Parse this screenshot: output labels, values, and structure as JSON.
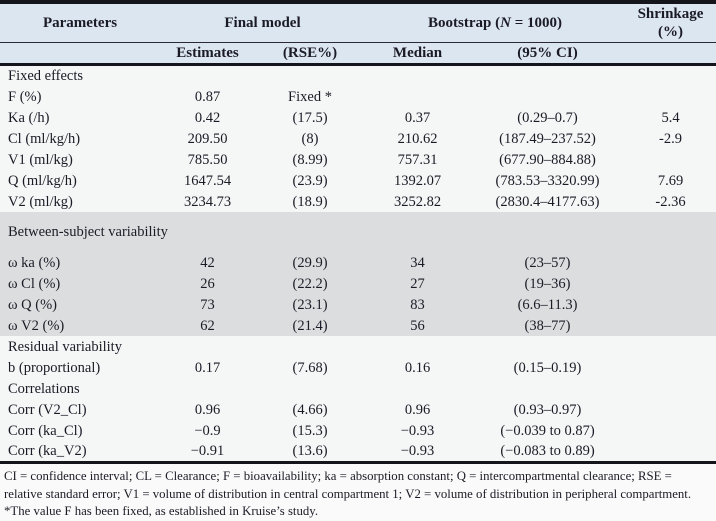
{
  "colors": {
    "header_bg": "#dce6f1",
    "section_gray_bg": "#dcddde",
    "body_bg": "#f5f6f6",
    "text": "#1b1b26",
    "border": "#15151c"
  },
  "table": {
    "header": {
      "parameters": "Parameters",
      "final_model": "Final model",
      "bootstrap_pre": "Bootstrap (",
      "bootstrap_n": "N",
      "bootstrap_post": " = 1000)",
      "shrinkage": "Shrinkage (%)",
      "estimates": "Estimates",
      "rse": "(RSE%)",
      "median": "Median",
      "ci": "(95% CI)"
    },
    "sections": [
      {
        "label": "Fixed effects",
        "gray": false,
        "rows": [
          [
            "F (%)",
            "0.87",
            "Fixed *",
            "",
            "",
            ""
          ],
          [
            "Ka (/h)",
            "0.42",
            "(17.5)",
            "0.37",
            "(0.29–0.7)",
            "5.4"
          ],
          [
            "Cl (ml/kg/h)",
            "209.50",
            "(8)",
            "210.62",
            "(187.49–237.52)",
            "-2.9"
          ],
          [
            "V1 (ml/kg)",
            "785.50",
            "(8.99)",
            "757.31",
            "(677.90–884.88)",
            ""
          ],
          [
            "Q (ml/kg/h)",
            "1647.54",
            "(23.9)",
            "1392.07",
            "(783.53–3320.99)",
            "7.69"
          ],
          [
            "V2 (ml/kg)",
            "3234.73",
            "(18.9)",
            "3252.82",
            "(2830.4–4177.63)",
            "-2.36"
          ]
        ]
      },
      {
        "label": "Between-subject variability",
        "gray": true,
        "rows": [
          [
            "ω ka (%)",
            "42",
            "(29.9)",
            "34",
            "(23–57)",
            ""
          ],
          [
            "ω Cl (%)",
            "26",
            "(22.2)",
            "27",
            "(19–36)",
            ""
          ],
          [
            "ω Q (%)",
            "73",
            "(23.1)",
            "83",
            "(6.6–11.3)",
            ""
          ],
          [
            "ω V2 (%)",
            "62",
            "(21.4)",
            "56",
            "(38–77)",
            ""
          ]
        ]
      },
      {
        "label": "Residual variability",
        "gray": false,
        "rows": [
          [
            "b (proportional)",
            "0.17",
            "(7.68)",
            "0.16",
            "(0.15–0.19)",
            ""
          ]
        ]
      },
      {
        "label": "Correlations",
        "gray": false,
        "rows": [
          [
            "Corr (V2_Cl)",
            "0.96",
            "(4.66)",
            "0.96",
            "(0.93–0.97)",
            ""
          ],
          [
            "Corr (ka_Cl)",
            "−0.9",
            "(15.3)",
            "−0.93",
            "(−0.039 to 0.87)",
            ""
          ],
          [
            "Corr (ka_V2)",
            "−0.91",
            "(13.6)",
            "−0.93",
            "(−0.083 to 0.89)",
            ""
          ]
        ]
      }
    ]
  },
  "footnotes": {
    "abbreviations": "CI = confidence interval; CL = Clearance; F = bioavailability; ka = absorption constant; Q = intercompartmental clearance; RSE = relative standard error; V1 = volume of distribution in central compartment 1; V2 = volume of distribution in peripheral compartment.",
    "asterisk": "*The value F has been fixed, as established in Kruise’s study."
  }
}
